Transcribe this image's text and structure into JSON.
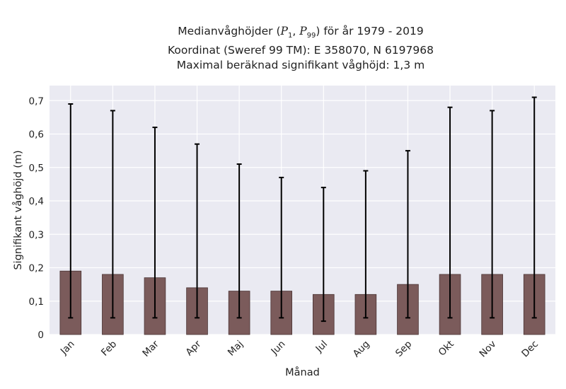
{
  "title": {
    "line1_prefix": "Medianvåghöjder (",
    "line1_p1_base": "P",
    "line1_p1_sub": "1",
    "line1_sep": ", ",
    "line1_p99_base": "P",
    "line1_p99_sub": "99",
    "line1_suffix": ") för år 1979 - 2019",
    "line2": "Koordinat (Sweref 99 TM): E 358070, N 6197968",
    "line3": "Maximal beräknad signifikant våghöjd: 1,3 m"
  },
  "chart_data": {
    "type": "bar",
    "xlabel": "Månad",
    "ylabel": "Signifikant våghöjd (m)",
    "ylim": [
      0,
      0.745
    ],
    "yticks": [
      0,
      0.1,
      0.2,
      0.3,
      0.4,
      0.5,
      0.6,
      0.7
    ],
    "ytick_labels": [
      "0",
      "0,1",
      "0,2",
      "0,3",
      "0,4",
      "0,5",
      "0,6",
      "0,7"
    ],
    "categories": [
      "Jan",
      "Feb",
      "Mar",
      "Apr",
      "Maj",
      "Jun",
      "Jul",
      "Aug",
      "Sep",
      "Okt",
      "Nov",
      "Dec"
    ],
    "series": [
      {
        "values": [
          0.19,
          0.18,
          0.17,
          0.14,
          0.13,
          0.13,
          0.12,
          0.12,
          0.15,
          0.18,
          0.18,
          0.18
        ],
        "p1": [
          0.05,
          0.05,
          0.05,
          0.05,
          0.05,
          0.05,
          0.04,
          0.05,
          0.05,
          0.05,
          0.05,
          0.05
        ],
        "p99": [
          0.69,
          0.67,
          0.62,
          0.57,
          0.51,
          0.47,
          0.44,
          0.49,
          0.55,
          0.68,
          0.67,
          0.71
        ]
      }
    ],
    "grid": true,
    "bar_color": "#7b5b5b",
    "plot_background": "#eaeaf2",
    "errorbar_color": "#000000"
  }
}
